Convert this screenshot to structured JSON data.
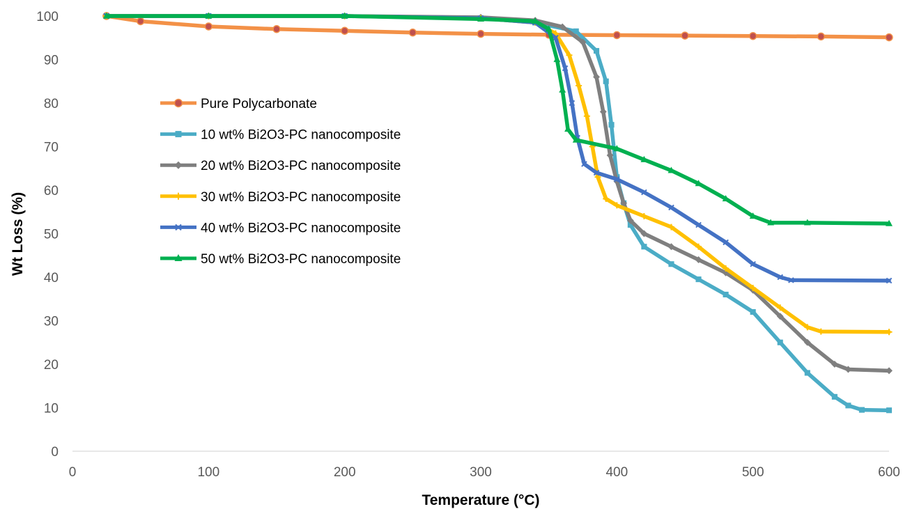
{
  "chart_data": {
    "type": "line",
    "title": "",
    "xlabel": "Temperature (°C)",
    "ylabel": "Wt Loss (%)",
    "xlim": [
      0,
      600
    ],
    "ylim": [
      0,
      100
    ],
    "xticks": [
      0,
      100,
      200,
      300,
      400,
      500,
      600
    ],
    "yticks": [
      0,
      10,
      20,
      30,
      40,
      50,
      60,
      70,
      80,
      90,
      100
    ],
    "grid": false,
    "legend_position": "left",
    "series": [
      {
        "name": "Pure Polycarbonate",
        "color": "#F39147",
        "marker": "circle",
        "points": [
          [
            25,
            100
          ],
          [
            50,
            98.8
          ],
          [
            100,
            97.6
          ],
          [
            150,
            97
          ],
          [
            200,
            96.6
          ],
          [
            250,
            96.2
          ],
          [
            300,
            95.9
          ],
          [
            350,
            95.7
          ],
          [
            400,
            95.6
          ],
          [
            450,
            95.5
          ],
          [
            500,
            95.4
          ],
          [
            550,
            95.3
          ],
          [
            600,
            95.1
          ]
        ]
      },
      {
        "name": "10 wt% Bi2O3-PC nanocomposite",
        "color": "#4BACC6",
        "marker": "square",
        "points": [
          [
            25,
            100
          ],
          [
            100,
            100
          ],
          [
            200,
            100
          ],
          [
            300,
            99.5
          ],
          [
            340,
            98.5
          ],
          [
            370,
            96.5
          ],
          [
            385,
            92
          ],
          [
            392,
            85
          ],
          [
            396,
            75
          ],
          [
            400,
            63
          ],
          [
            405,
            57
          ],
          [
            410,
            52
          ],
          [
            420,
            47
          ],
          [
            440,
            43
          ],
          [
            460,
            39.5
          ],
          [
            480,
            36
          ],
          [
            500,
            32
          ],
          [
            520,
            25
          ],
          [
            540,
            18
          ],
          [
            560,
            12.5
          ],
          [
            570,
            10.5
          ],
          [
            580,
            9.5
          ],
          [
            600,
            9.4
          ]
        ]
      },
      {
        "name": "20 wt% Bi2O3-PC nanocomposite",
        "color": "#7F7F7F",
        "marker": "diamond",
        "points": [
          [
            25,
            100
          ],
          [
            100,
            100
          ],
          [
            200,
            100
          ],
          [
            300,
            99.7
          ],
          [
            340,
            99
          ],
          [
            360,
            97.5
          ],
          [
            375,
            94
          ],
          [
            385,
            86
          ],
          [
            390,
            78
          ],
          [
            395,
            68
          ],
          [
            400,
            62
          ],
          [
            405,
            57
          ],
          [
            410,
            53
          ],
          [
            420,
            50
          ],
          [
            440,
            47
          ],
          [
            460,
            44
          ],
          [
            480,
            41
          ],
          [
            500,
            37
          ],
          [
            520,
            31
          ],
          [
            540,
            25
          ],
          [
            560,
            20
          ],
          [
            570,
            18.8
          ],
          [
            600,
            18.5
          ]
        ]
      },
      {
        "name": "30 wt% Bi2O3-PC nanocomposite",
        "color": "#FFC000",
        "marker": "plus",
        "points": [
          [
            25,
            100
          ],
          [
            100,
            100
          ],
          [
            200,
            100
          ],
          [
            300,
            99.5
          ],
          [
            340,
            98.5
          ],
          [
            355,
            96
          ],
          [
            365,
            91
          ],
          [
            372,
            84
          ],
          [
            378,
            77
          ],
          [
            382,
            70
          ],
          [
            386,
            63
          ],
          [
            392,
            58
          ],
          [
            400,
            56.5
          ],
          [
            420,
            54
          ],
          [
            440,
            51.5
          ],
          [
            460,
            47
          ],
          [
            480,
            42
          ],
          [
            500,
            37.5
          ],
          [
            520,
            33
          ],
          [
            540,
            28.5
          ],
          [
            550,
            27.5
          ],
          [
            600,
            27.4
          ]
        ]
      },
      {
        "name": "40 wt% Bi2O3-PC nanocomposite",
        "color": "#4472C4",
        "marker": "x",
        "points": [
          [
            25,
            100
          ],
          [
            100,
            100
          ],
          [
            200,
            100
          ],
          [
            300,
            99.5
          ],
          [
            340,
            98.5
          ],
          [
            355,
            95
          ],
          [
            362,
            88
          ],
          [
            367,
            80
          ],
          [
            371,
            72
          ],
          [
            376,
            66
          ],
          [
            385,
            64
          ],
          [
            400,
            62.5
          ],
          [
            420,
            59.5
          ],
          [
            440,
            56
          ],
          [
            460,
            52
          ],
          [
            480,
            48
          ],
          [
            500,
            43
          ],
          [
            520,
            40
          ],
          [
            528,
            39.3
          ],
          [
            600,
            39.2
          ]
        ]
      },
      {
        "name": "50 wt% Bi2O3-PC nanocomposite",
        "color": "#00B050",
        "marker": "triangle",
        "points": [
          [
            25,
            100
          ],
          [
            100,
            100
          ],
          [
            200,
            100
          ],
          [
            300,
            99.3
          ],
          [
            340,
            98.8
          ],
          [
            350,
            97
          ],
          [
            356,
            90
          ],
          [
            360,
            83
          ],
          [
            364,
            74
          ],
          [
            370,
            71.5
          ],
          [
            400,
            69.5
          ],
          [
            420,
            67
          ],
          [
            440,
            64.5
          ],
          [
            460,
            61.5
          ],
          [
            480,
            58
          ],
          [
            500,
            54
          ],
          [
            513,
            52.5
          ],
          [
            540,
            52.5
          ],
          [
            600,
            52.3
          ]
        ]
      }
    ]
  }
}
